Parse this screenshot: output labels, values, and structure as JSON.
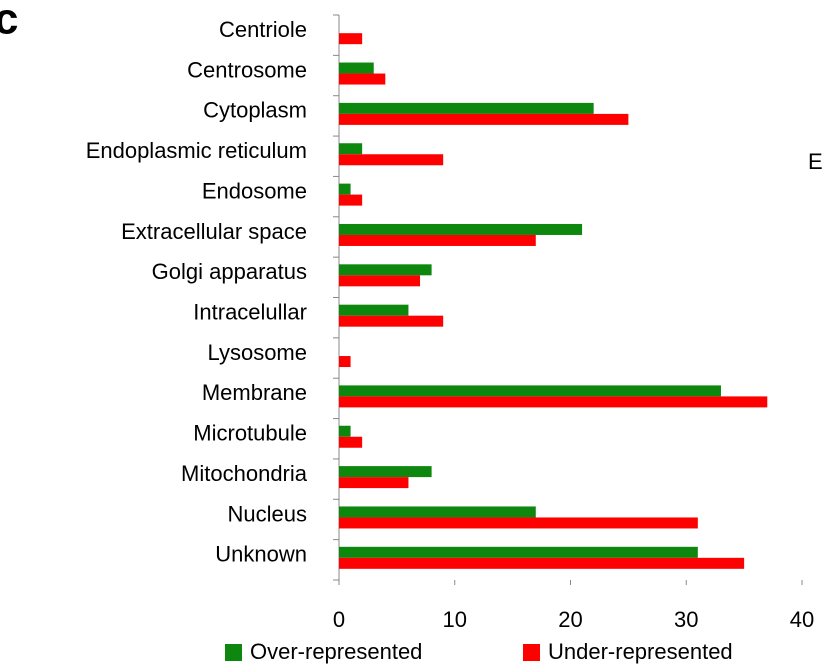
{
  "chart_data": {
    "type": "barh",
    "panel_label": "c",
    "annotation": "E",
    "categories": [
      "Centriole",
      "Centrosome",
      "Cytoplasm",
      "Endoplasmic reticulum",
      "Endosome",
      "Extracellular space",
      "Golgi apparatus",
      "Intracelullar",
      "Lysosome",
      "Membrane",
      "Microtubule",
      "Mitochondria",
      "Nucleus",
      "Unknown"
    ],
    "series": [
      {
        "name": "Over-represented",
        "color": "#0e870e",
        "values": [
          0,
          3,
          22,
          2,
          1,
          21,
          8,
          6,
          0,
          33,
          1,
          8,
          17,
          31
        ]
      },
      {
        "name": "Under-represented",
        "color": "#ff0000",
        "values": [
          2,
          4,
          25,
          9,
          2,
          17,
          7,
          9,
          1,
          37,
          2,
          6,
          31,
          35
        ]
      }
    ],
    "xlim": [
      0,
      40
    ],
    "xticks": [
      0,
      10,
      20,
      30,
      40
    ],
    "legend": "bottom"
  }
}
